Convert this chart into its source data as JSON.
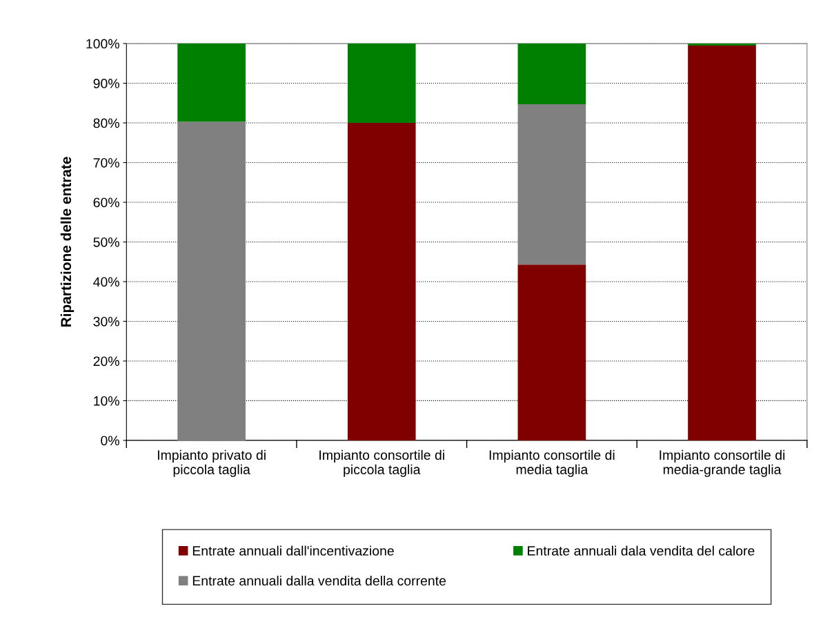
{
  "chart_data": {
    "type": "bar",
    "stacked": true,
    "ylabel": "Ripartizione delle entrate",
    "categories": [
      "Impianto privato di\npiccola taglia",
      "Impianto consortile di\npiccola taglia",
      "Impianto consortile di\nmedia taglia",
      "Impianto consortile di\nmedia-grande taglia"
    ],
    "series": [
      {
        "name": "Entrate annuali dall'incentivazione",
        "color": "#800000",
        "values": [
          0,
          80,
          44.3,
          99.5
        ]
      },
      {
        "name": "Entrate annuali dalla vendita della corrente",
        "color": "#808080",
        "values": [
          80.3,
          0,
          40.4,
          0
        ]
      },
      {
        "name": "Entrate annuali dala vendita del calore",
        "color": "#008000",
        "values": [
          19.7,
          20,
          15.3,
          0.5
        ]
      }
    ],
    "ylim": [
      0,
      100
    ],
    "yticks": [
      {
        "value": 0,
        "label": "0%"
      },
      {
        "value": 10,
        "label": "10%"
      },
      {
        "value": 20,
        "label": "20%"
      },
      {
        "value": 30,
        "label": "30%"
      },
      {
        "value": 40,
        "label": "40%"
      },
      {
        "value": 50,
        "label": "50%"
      },
      {
        "value": 60,
        "label": "60%"
      },
      {
        "value": 70,
        "label": "70%"
      },
      {
        "value": 80,
        "label": "80%"
      },
      {
        "value": 90,
        "label": "90%"
      },
      {
        "value": 100,
        "label": "100%"
      }
    ],
    "grid": "y",
    "legend": "bottom"
  }
}
